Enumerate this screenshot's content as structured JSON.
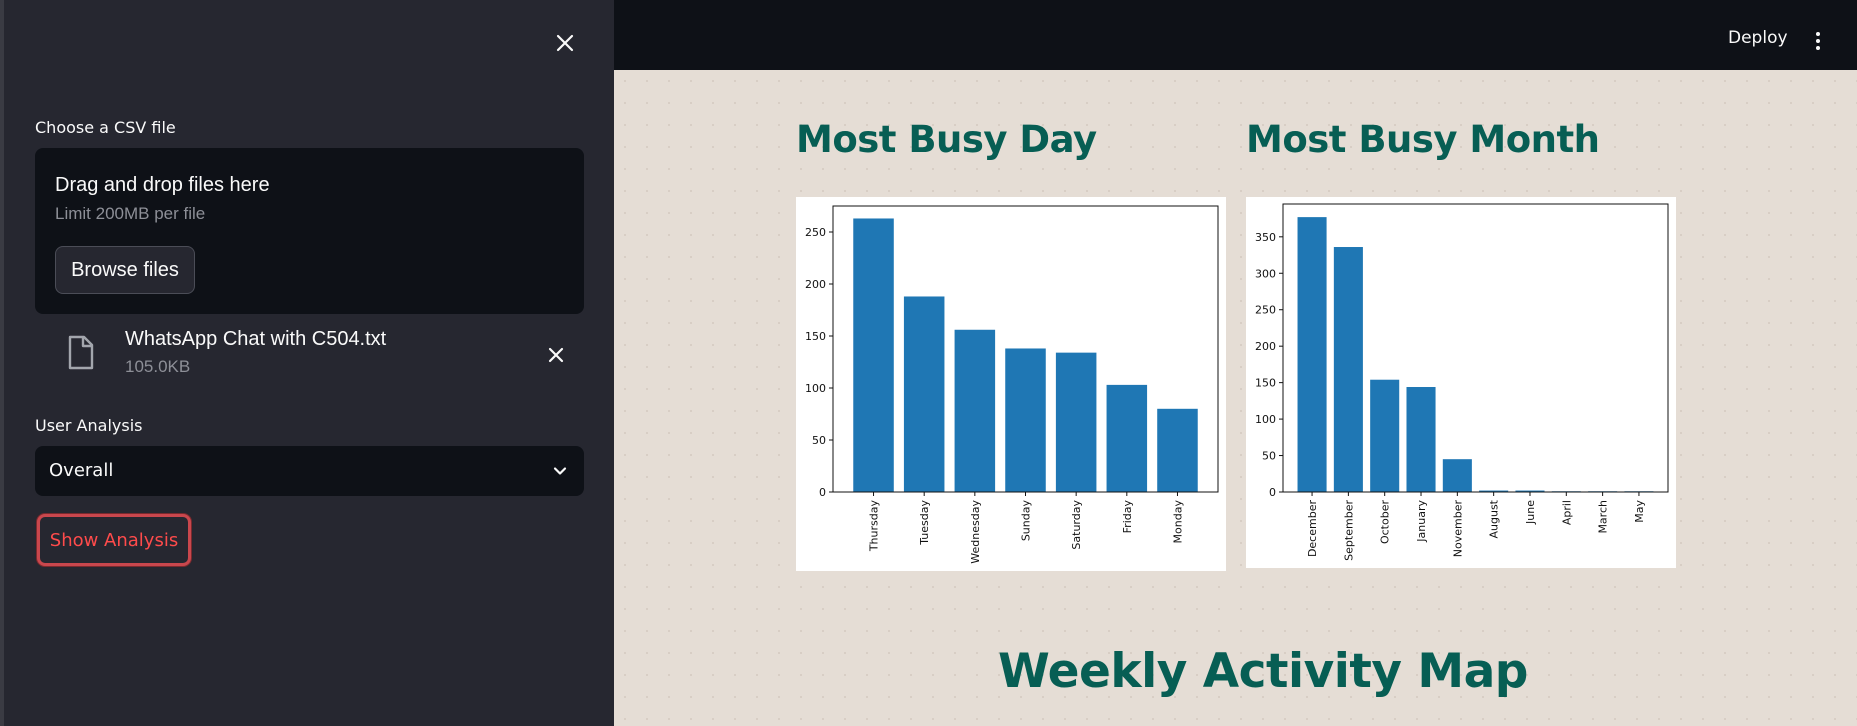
{
  "sidebar": {
    "csv_label": "Choose a CSV file",
    "uploader": {
      "title": "Drag and drop files here",
      "limit": "Limit 200MB per file",
      "browse_label": "Browse files"
    },
    "file": {
      "name": "WhatsApp Chat with C504.txt",
      "size": "105.0KB"
    },
    "user_analysis_label": "User Analysis",
    "user_select_value": "Overall",
    "show_analysis_label": "Show Analysis"
  },
  "header": {
    "deploy_label": "Deploy"
  },
  "main": {
    "busy_day_title": "Most Busy Day",
    "busy_month_title": "Most Busy Month",
    "weekly_map_title": "Weekly Activity Map"
  },
  "colors": {
    "accent": "#075e54",
    "bar": "#1f77b4",
    "danger": "#ff4b4b"
  },
  "chart_data": [
    {
      "type": "bar",
      "categories": [
        "Thursday",
        "Tuesday",
        "Wednesday",
        "Sunday",
        "Saturday",
        "Friday",
        "Monday"
      ],
      "values": [
        263,
        188,
        156,
        138,
        134,
        103,
        80
      ],
      "ylim": [
        0,
        275
      ],
      "yticks": [
        0,
        50,
        100,
        150,
        200,
        250
      ],
      "grid": false
    },
    {
      "type": "bar",
      "categories": [
        "December",
        "September",
        "October",
        "January",
        "November",
        "August",
        "June",
        "April",
        "March",
        "May"
      ],
      "values": [
        377,
        336,
        154,
        144,
        45,
        2,
        2,
        1,
        1,
        1
      ],
      "ylim": [
        0,
        395
      ],
      "yticks": [
        0,
        50,
        100,
        150,
        200,
        250,
        300,
        350
      ],
      "grid": false
    }
  ]
}
